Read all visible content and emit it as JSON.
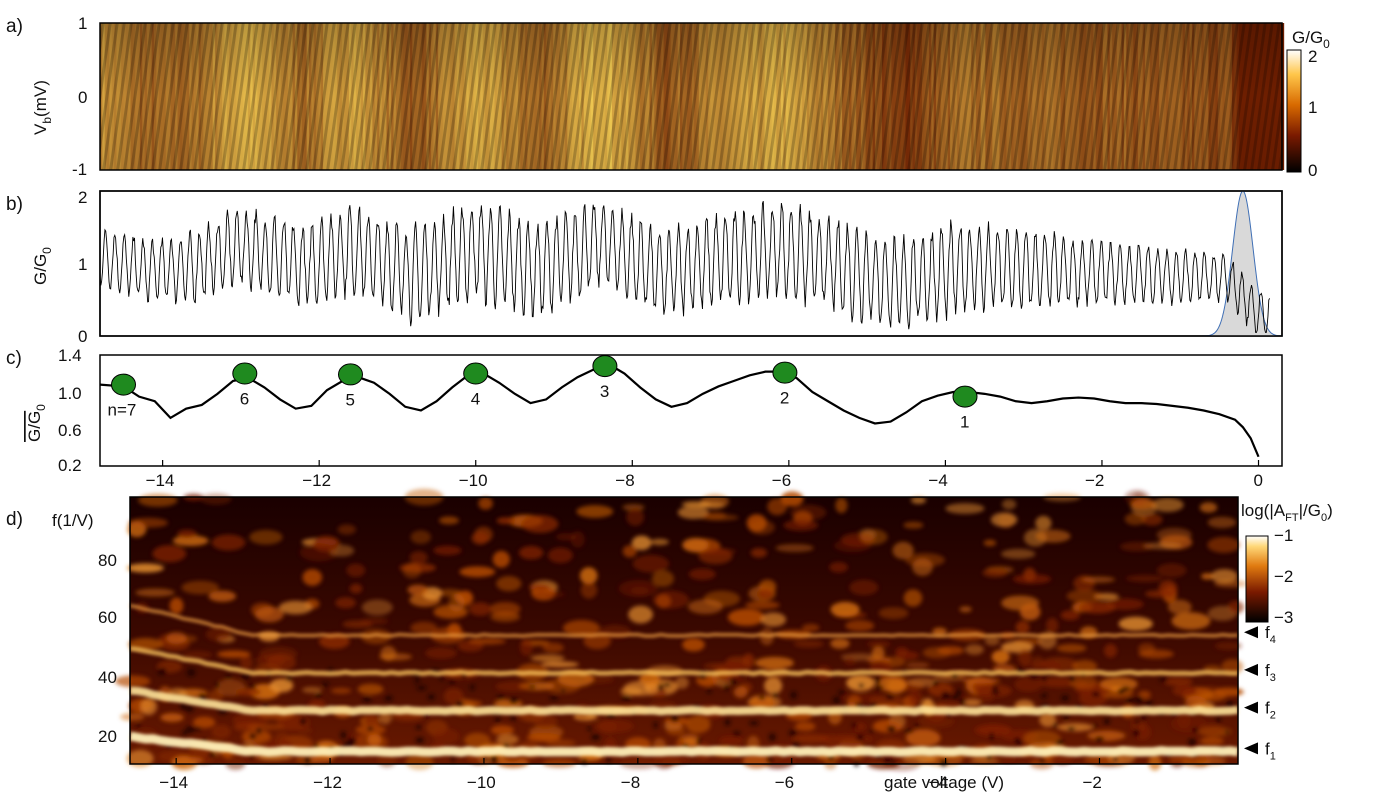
{
  "panels": {
    "a": {
      "label": "a)",
      "ylabel": "V",
      "ylabel_sub": "b",
      "ylabel_rest": "(mV)",
      "yticks": [
        "1",
        "0",
        "-1"
      ],
      "cbar_title": "G/G",
      "cbar_title_sub": "0",
      "cbar_ticks": [
        "2",
        "1",
        "0"
      ]
    },
    "b": {
      "label": "b)",
      "ylabel": "G/G",
      "ylabel_sub": "0",
      "yticks": [
        "2",
        "1",
        "0"
      ]
    },
    "c": {
      "label": "c)",
      "ylabel": "G/G",
      "ylabel_sub": "0",
      "yticks": [
        "1.4",
        "1.0",
        "0.6",
        "0.2"
      ],
      "xticks": [
        "−14",
        "−12",
        "−10",
        "−8",
        "−6",
        "−4",
        "−2",
        "0"
      ]
    },
    "d": {
      "label": "d)",
      "ylabel": "f(1/V)",
      "yticks": [
        "80",
        "60",
        "40",
        "20"
      ],
      "xticks": [
        "−14",
        "−12",
        "−10",
        "−8",
        "−6",
        "−4",
        "−2"
      ],
      "xlabel": "gate voltage (V)",
      "cbar_title_a": "log(|A",
      "cbar_title_sub": "FT",
      "cbar_title_b": "|/G",
      "cbar_title_sub2": "0",
      "cbar_title_c": ")",
      "cbar_ticks": [
        "−1",
        "−2",
        "−3"
      ],
      "markers": [
        {
          "name": "f",
          "sub": "4"
        },
        {
          "name": "f",
          "sub": "3"
        },
        {
          "name": "f",
          "sub": "2"
        },
        {
          "name": "f",
          "sub": "1"
        }
      ]
    }
  },
  "chart_data": [
    {
      "type": "heatmap",
      "panel": "a",
      "xlim": [
        -14.8,
        0.3
      ],
      "ylim": [
        -1,
        1
      ],
      "ylabel": "V_b (mV)",
      "colorbar": {
        "label": "G/G_0",
        "range": [
          0,
          2
        ],
        "colormap": "afmhot"
      }
    },
    {
      "type": "line",
      "panel": "b",
      "xlim": [
        -14.8,
        0.3
      ],
      "ylim": [
        0,
        2
      ],
      "ylabel": "G/G_0",
      "oscillation_period_V": 0.12,
      "envelope_mean": [
        [
          -14.8,
          1.1
        ],
        [
          -14.2,
          0.9
        ],
        [
          -13.6,
          0.95
        ],
        [
          -13.0,
          1.25
        ],
        [
          -12.2,
          0.95
        ],
        [
          -11.6,
          1.2
        ],
        [
          -10.8,
          0.85
        ],
        [
          -10.0,
          1.2
        ],
        [
          -9.2,
          0.9
        ],
        [
          -8.4,
          1.3
        ],
        [
          -7.6,
          0.85
        ],
        [
          -6.9,
          1.05
        ],
        [
          -6.1,
          1.2
        ],
        [
          -5.5,
          1.0
        ],
        [
          -4.6,
          0.7
        ],
        [
          -3.8,
          0.95
        ],
        [
          -2.6,
          0.9
        ],
        [
          -1.5,
          0.85
        ],
        [
          -0.4,
          0.8
        ],
        [
          0.0,
          0.3
        ]
      ],
      "envelope_amplitude": [
        [
          -14.8,
          0.35
        ],
        [
          -13.0,
          0.5
        ],
        [
          -10.0,
          0.65
        ],
        [
          -8.4,
          0.55
        ],
        [
          -6.1,
          0.6
        ],
        [
          -4.0,
          0.6
        ],
        [
          -2.0,
          0.4
        ],
        [
          -0.2,
          0.3
        ]
      ],
      "shaded_gaussian": {
        "center": -0.2,
        "sigma": 0.13,
        "peak": 2.0,
        "color": "#d9d9d9",
        "edge": "#3f6fb5"
      }
    },
    {
      "type": "line",
      "panel": "c",
      "xlim": [
        -14.8,
        0.3
      ],
      "ylim": [
        0.2,
        1.4
      ],
      "ylabel": "mean G/G_0",
      "x": [
        -14.8,
        -14.5,
        -14.3,
        -14.1,
        -13.9,
        -13.7,
        -13.5,
        -13.3,
        -13.1,
        -12.9,
        -12.7,
        -12.5,
        -12.3,
        -12.1,
        -11.9,
        -11.7,
        -11.5,
        -11.3,
        -11.1,
        -10.9,
        -10.7,
        -10.5,
        -10.3,
        -10.1,
        -9.9,
        -9.7,
        -9.5,
        -9.3,
        -9.1,
        -8.9,
        -8.7,
        -8.5,
        -8.3,
        -8.1,
        -7.9,
        -7.7,
        -7.5,
        -7.3,
        -7.1,
        -6.9,
        -6.7,
        -6.5,
        -6.3,
        -6.1,
        -5.9,
        -5.7,
        -5.5,
        -5.3,
        -5.1,
        -4.9,
        -4.7,
        -4.5,
        -4.3,
        -4.1,
        -3.9,
        -3.7,
        -3.5,
        -3.3,
        -3.1,
        -2.9,
        -2.7,
        -2.5,
        -2.3,
        -2.1,
        -1.9,
        -1.7,
        -1.5,
        -1.3,
        -1.1,
        -0.9,
        -0.7,
        -0.5,
        -0.3,
        -0.2,
        -0.1,
        0.0
      ],
      "y": [
        1.08,
        1.06,
        0.95,
        0.9,
        0.72,
        0.82,
        0.86,
        0.98,
        1.12,
        1.15,
        1.05,
        0.92,
        0.82,
        0.85,
        1.02,
        1.12,
        1.16,
        1.1,
        0.98,
        0.84,
        0.8,
        0.9,
        1.05,
        1.18,
        1.2,
        1.1,
        0.98,
        0.88,
        0.92,
        1.05,
        1.16,
        1.24,
        1.3,
        1.2,
        1.05,
        0.92,
        0.84,
        0.88,
        0.98,
        1.06,
        1.12,
        1.18,
        1.22,
        1.22,
        1.15,
        1.0,
        0.9,
        0.8,
        0.72,
        0.66,
        0.68,
        0.78,
        0.9,
        0.96,
        1.0,
        1.0,
        0.98,
        0.95,
        0.9,
        0.88,
        0.9,
        0.93,
        0.94,
        0.93,
        0.9,
        0.88,
        0.88,
        0.87,
        0.85,
        0.83,
        0.8,
        0.76,
        0.7,
        0.62,
        0.5,
        0.3
      ],
      "markers": [
        {
          "n": "n=7",
          "x": -14.5,
          "y": 1.08
        },
        {
          "n": "6",
          "x": -12.95,
          "y": 1.2
        },
        {
          "n": "5",
          "x": -11.6,
          "y": 1.19
        },
        {
          "n": "4",
          "x": -10.0,
          "y": 1.2
        },
        {
          "n": "3",
          "x": -8.35,
          "y": 1.28
        },
        {
          "n": "2",
          "x": -6.05,
          "y": 1.21
        },
        {
          "n": "1",
          "x": -3.75,
          "y": 0.95
        }
      ],
      "marker_color": "#1f8a1f"
    },
    {
      "type": "heatmap",
      "panel": "d",
      "xlim": [
        -14.6,
        -0.2
      ],
      "ylim": [
        10,
        95
      ],
      "xlabel": "gate voltage (V)",
      "ylabel": "f(1/V)",
      "colorbar": {
        "label": "log(|A_FT|/G_0)",
        "range": [
          -3.3,
          -1
        ],
        "colormap": "afmhot"
      },
      "bright_lines": [
        {
          "label": "f1",
          "f": 14
        },
        {
          "label": "f2",
          "f": 27
        },
        {
          "label": "f3",
          "f": 39
        },
        {
          "label": "f4",
          "f": 51
        }
      ]
    }
  ]
}
